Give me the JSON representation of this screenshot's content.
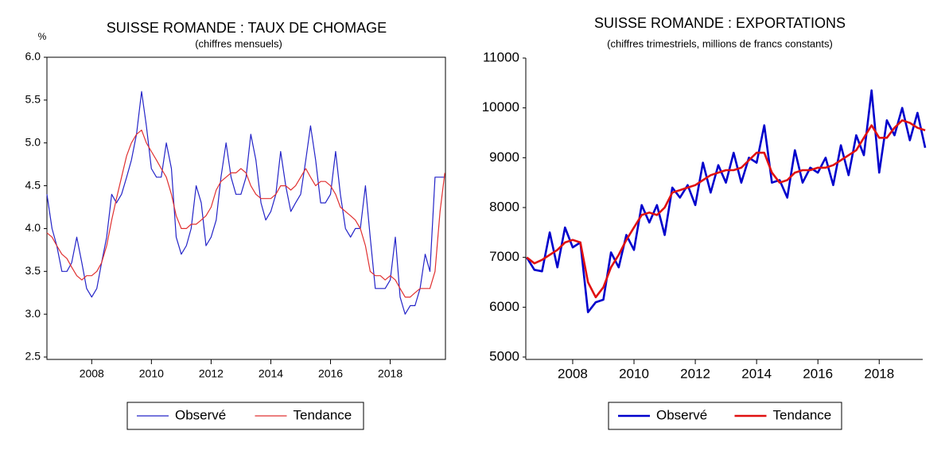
{
  "chart_data": [
    {
      "type": "line",
      "title": "SUISSE ROMANDE : TAUX DE CHOMAGE",
      "subtitle": "(chiffres mensuels)",
      "y_label": "%",
      "x": [
        2006.5,
        2006.67,
        2006.83,
        2007,
        2007.17,
        2007.33,
        2007.5,
        2007.67,
        2007.83,
        2008,
        2008.17,
        2008.33,
        2008.5,
        2008.67,
        2008.83,
        2009,
        2009.17,
        2009.33,
        2009.5,
        2009.67,
        2009.83,
        2010,
        2010.17,
        2010.33,
        2010.5,
        2010.67,
        2010.83,
        2011,
        2011.17,
        2011.33,
        2011.5,
        2011.67,
        2011.83,
        2012,
        2012.17,
        2012.33,
        2012.5,
        2012.67,
        2012.83,
        2013,
        2013.17,
        2013.33,
        2013.5,
        2013.67,
        2013.83,
        2014,
        2014.17,
        2014.33,
        2014.5,
        2014.67,
        2014.83,
        2015,
        2015.17,
        2015.33,
        2015.5,
        2015.67,
        2015.83,
        2016,
        2016.17,
        2016.33,
        2016.5,
        2016.67,
        2016.83,
        2017,
        2017.17,
        2017.33,
        2017.5,
        2017.67,
        2017.83,
        2018,
        2018.17,
        2018.33,
        2018.5,
        2018.67,
        2018.83,
        2019,
        2019.17,
        2019.33,
        2019.5,
        2019.67,
        2019.83
      ],
      "series": [
        {
          "name": "Observé",
          "color": "#2424c8",
          "values": [
            4.4,
            4.0,
            3.8,
            3.5,
            3.5,
            3.6,
            3.9,
            3.6,
            3.3,
            3.2,
            3.3,
            3.6,
            3.9,
            4.4,
            4.3,
            4.4,
            4.6,
            4.8,
            5.1,
            5.6,
            5.2,
            4.7,
            4.6,
            4.6,
            5.0,
            4.7,
            3.9,
            3.7,
            3.8,
            4.0,
            4.5,
            4.3,
            3.8,
            3.9,
            4.1,
            4.6,
            5.0,
            4.6,
            4.4,
            4.4,
            4.6,
            5.1,
            4.8,
            4.3,
            4.1,
            4.2,
            4.4,
            4.9,
            4.5,
            4.2,
            4.3,
            4.4,
            4.8,
            5.2,
            4.8,
            4.3,
            4.3,
            4.4,
            4.9,
            4.4,
            4.0,
            3.9,
            4.0,
            4.0,
            4.5,
            3.9,
            3.3,
            3.3,
            3.3,
            3.4,
            3.9,
            3.2,
            3.0,
            3.1,
            3.1,
            3.3,
            3.7,
            3.5,
            4.6,
            4.6,
            4.6
          ]
        },
        {
          "name": "Tendance",
          "color": "#e03030",
          "values": [
            3.95,
            3.9,
            3.8,
            3.7,
            3.65,
            3.55,
            3.45,
            3.4,
            3.45,
            3.45,
            3.5,
            3.6,
            3.8,
            4.1,
            4.35,
            4.6,
            4.85,
            5.0,
            5.1,
            5.15,
            5.0,
            4.9,
            4.8,
            4.7,
            4.6,
            4.4,
            4.15,
            4.0,
            4.0,
            4.05,
            4.05,
            4.1,
            4.15,
            4.25,
            4.45,
            4.55,
            4.6,
            4.65,
            4.65,
            4.7,
            4.65,
            4.5,
            4.4,
            4.35,
            4.35,
            4.35,
            4.4,
            4.5,
            4.5,
            4.45,
            4.5,
            4.6,
            4.7,
            4.6,
            4.5,
            4.55,
            4.55,
            4.5,
            4.4,
            4.25,
            4.2,
            4.15,
            4.1,
            4.0,
            3.8,
            3.5,
            3.45,
            3.45,
            3.4,
            3.45,
            3.4,
            3.3,
            3.2,
            3.2,
            3.25,
            3.3,
            3.3,
            3.3,
            3.5,
            4.2,
            4.65
          ]
        }
      ],
      "xlim": [
        2006.5,
        2019.85
      ],
      "xticks": [
        2008,
        2010,
        2012,
        2014,
        2016,
        2018
      ],
      "ylim": [
        2.5,
        6.0
      ],
      "yticks": [
        2.5,
        {
          "value": 3,
          "label": "3.0"
        },
        3.5,
        {
          "value": 4,
          "label": "4.0"
        },
        4.5,
        {
          "value": 5,
          "label": "5.0"
        },
        5.5,
        {
          "value": 6,
          "label": "6.0"
        }
      ],
      "grid": false,
      "legend": "bottom"
    },
    {
      "type": "line",
      "title": "SUISSE ROMANDE : EXPORTATIONS",
      "subtitle": "(chiffres trimestriels, millions de francs constants)",
      "x": [
        2006.5,
        2006.75,
        2007,
        2007.25,
        2007.5,
        2007.75,
        2008,
        2008.25,
        2008.5,
        2008.75,
        2009,
        2009.25,
        2009.5,
        2009.75,
        2010,
        2010.25,
        2010.5,
        2010.75,
        2011,
        2011.25,
        2011.5,
        2011.75,
        2012,
        2012.25,
        2012.5,
        2012.75,
        2013,
        2013.25,
        2013.5,
        2013.75,
        2014,
        2014.25,
        2014.5,
        2014.75,
        2015,
        2015.25,
        2015.5,
        2015.75,
        2016,
        2016.25,
        2016.5,
        2016.75,
        2017,
        2017.25,
        2017.5,
        2017.75,
        2018,
        2018.25,
        2018.5,
        2018.75,
        2019,
        2019.25,
        2019.5
      ],
      "series": [
        {
          "name": "Observé",
          "color": "#0000cc",
          "values": [
            7000,
            6750,
            6720,
            7500,
            6800,
            7600,
            7200,
            7300,
            5900,
            6100,
            6150,
            7100,
            6800,
            7450,
            7150,
            8050,
            7700,
            8050,
            7450,
            8400,
            8200,
            8450,
            8050,
            8900,
            8300,
            8850,
            8500,
            9100,
            8500,
            9000,
            8900,
            9650,
            8500,
            8550,
            8200,
            9150,
            8500,
            8800,
            8700,
            9000,
            8450,
            9250,
            8650,
            9450,
            9050,
            10350,
            8700,
            9750,
            9450,
            10000,
            9350,
            9900,
            9200
          ]
        },
        {
          "name": "Tendance",
          "color": "#e01010",
          "values": [
            7000,
            6880,
            6950,
            7050,
            7150,
            7300,
            7350,
            7300,
            6500,
            6200,
            6400,
            6800,
            7050,
            7350,
            7600,
            7850,
            7900,
            7850,
            8000,
            8300,
            8350,
            8400,
            8450,
            8550,
            8650,
            8700,
            8750,
            8750,
            8800,
            8950,
            9100,
            9100,
            8700,
            8500,
            8550,
            8700,
            8750,
            8750,
            8800,
            8800,
            8850,
            8950,
            9050,
            9150,
            9400,
            9650,
            9400,
            9400,
            9600,
            9750,
            9700,
            9600,
            9550
          ]
        }
      ],
      "xlim": [
        2006.47,
        2019.42
      ],
      "xticks": [
        2008,
        2010,
        2012,
        2014,
        2016,
        2018
      ],
      "ylim": [
        5000,
        11000
      ],
      "yticks": [
        5000,
        6000,
        7000,
        8000,
        9000,
        10000,
        11000
      ],
      "grid": false,
      "legend": "bottom"
    }
  ]
}
